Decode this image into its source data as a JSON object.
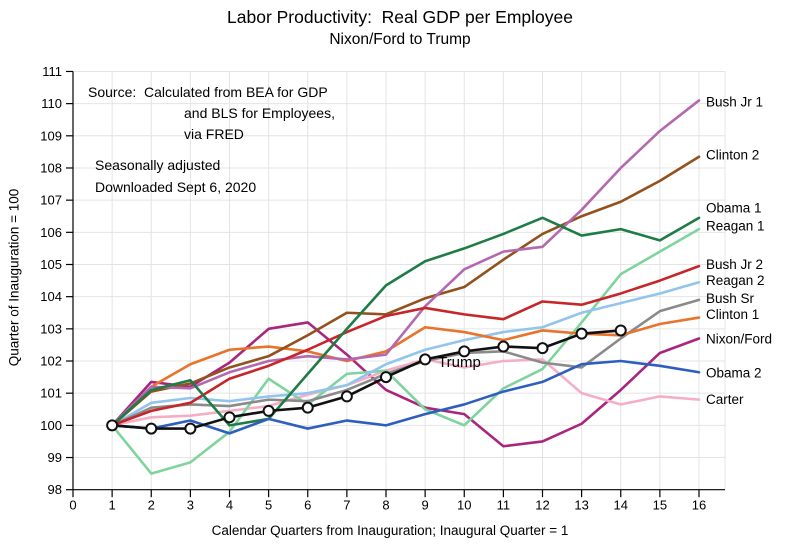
{
  "header": {
    "title": "Labor Productivity:  Real GDP per Employee",
    "subtitle": "Nixon/Ford to Trump"
  },
  "annotations": {
    "source_line1": "Source:  Calculated from BEA for GDP",
    "source_line2": "and BLS for Employees,",
    "source_line3": "via FRED",
    "note_line1": "Seasonally adjusted",
    "note_line2": "Downloaded Sept 6, 2020",
    "trump_label": "Trump"
  },
  "axes": {
    "x_title": "Calendar Quarters from Inauguration; Inaugural Quarter = 1",
    "y_title": "Quarter of Inauguration = 100"
  },
  "colors": {
    "grid": "#E4E4E4",
    "axis": "#000000",
    "marker_fill": "#FFFFFF"
  },
  "chart_data": {
    "type": "line",
    "title": "Labor Productivity:  Real GDP per Employee",
    "subtitle": "Nixon/Ford to Trump",
    "xlabel": "Calendar Quarters from Inauguration; Inaugural Quarter = 1",
    "ylabel": "Quarter of Inauguration = 100",
    "xlim": [
      0,
      16.7
    ],
    "ylim": [
      98,
      111
    ],
    "grid": true,
    "legend_position": "right-edge-of-lines",
    "x_ticks": [
      0,
      1,
      2,
      3,
      4,
      5,
      6,
      7,
      8,
      9,
      10,
      11,
      12,
      13,
      14,
      15,
      16
    ],
    "y_ticks": [
      98,
      99,
      100,
      101,
      102,
      103,
      104,
      105,
      106,
      107,
      108,
      109,
      110,
      111
    ],
    "x": [
      1,
      2,
      3,
      4,
      5,
      6,
      7,
      8,
      9,
      10,
      11,
      12,
      13,
      14,
      15,
      16
    ],
    "series": [
      {
        "key": "nixon-ford",
        "label": "Nixon/Ford",
        "color": "#A8267E",
        "label_value": 102.68,
        "values": [
          100,
          101.35,
          101.2,
          101.95,
          103.0,
          103.2,
          102.2,
          101.1,
          100.55,
          100.35,
          99.35,
          99.5,
          100.05,
          101.1,
          102.25,
          102.7
        ]
      },
      {
        "key": "carter",
        "label": "Carter",
        "color": "#F5AEC6",
        "label_value": 100.8,
        "values": [
          100,
          100.25,
          100.3,
          100.45,
          100.6,
          100.95,
          101.25,
          101.7,
          102.05,
          101.8,
          102.0,
          102.05,
          101.0,
          100.65,
          100.9,
          100.8
        ]
      },
      {
        "key": "reagan-1",
        "label": "Reagan 1",
        "color": "#7FD49E",
        "label_value": 106.2,
        "values": [
          100,
          98.5,
          98.85,
          99.8,
          101.45,
          100.65,
          101.6,
          101.7,
          100.5,
          100.0,
          101.15,
          101.75,
          103.2,
          104.7,
          105.4,
          106.1
        ]
      },
      {
        "key": "reagan-2",
        "label": "Reagan 2",
        "color": "#92C5EC",
        "label_value": 104.5,
        "values": [
          100,
          100.7,
          100.85,
          100.75,
          100.9,
          101.0,
          101.25,
          101.9,
          102.35,
          102.65,
          102.9,
          103.05,
          103.5,
          103.8,
          104.1,
          104.45
        ]
      },
      {
        "key": "bush-sr",
        "label": "Bush Sr",
        "color": "#8A8A8A",
        "label_value": 103.95,
        "values": [
          100,
          100.55,
          100.65,
          100.6,
          100.8,
          100.75,
          101.1,
          101.6,
          102.0,
          102.25,
          102.3,
          101.95,
          101.8,
          102.7,
          103.55,
          103.9
        ]
      },
      {
        "key": "clinton-1",
        "label": "Clinton 1",
        "color": "#E8732A",
        "label_value": 103.45,
        "values": [
          100,
          101.2,
          101.9,
          102.35,
          102.45,
          102.3,
          102.0,
          102.3,
          103.05,
          102.9,
          102.65,
          102.95,
          102.85,
          102.8,
          103.15,
          103.35
        ]
      },
      {
        "key": "clinton-2",
        "label": "Clinton 2",
        "color": "#93511D",
        "label_value": 108.4,
        "values": [
          100,
          101.05,
          101.3,
          101.8,
          102.15,
          102.8,
          103.5,
          103.45,
          103.95,
          104.3,
          105.15,
          105.95,
          106.5,
          106.95,
          107.6,
          108.35
        ]
      },
      {
        "key": "bush-jr-1",
        "label": "Bush Jr 1",
        "color": "#B468B0",
        "label_value": 110.05,
        "values": [
          100,
          101.2,
          101.15,
          101.65,
          102.0,
          102.15,
          102.05,
          102.2,
          103.7,
          104.85,
          105.4,
          105.55,
          106.7,
          108.0,
          109.15,
          110.1
        ]
      },
      {
        "key": "bush-jr-2",
        "label": "Bush Jr 2",
        "color": "#C6262A",
        "label_value": 105.0,
        "values": [
          100,
          100.45,
          100.7,
          101.45,
          101.85,
          102.35,
          102.9,
          103.4,
          103.65,
          103.45,
          103.3,
          103.85,
          103.75,
          104.1,
          104.5,
          104.95
        ]
      },
      {
        "key": "obama-1",
        "label": "Obama 1",
        "color": "#1F7C46",
        "label_value": 106.75,
        "values": [
          100,
          101.1,
          101.4,
          100.0,
          100.2,
          101.6,
          103.0,
          104.35,
          105.1,
          105.5,
          105.95,
          106.45,
          105.9,
          106.1,
          105.75,
          106.45
        ]
      },
      {
        "key": "obama-2",
        "label": "Obama 2",
        "color": "#2E5FBF",
        "label_value": 101.62,
        "values": [
          100,
          99.9,
          100.15,
          99.75,
          100.2,
          99.9,
          100.15,
          100.0,
          100.35,
          100.65,
          101.05,
          101.35,
          101.9,
          102.0,
          101.85,
          101.65
        ]
      },
      {
        "key": "trump",
        "label": "Trump",
        "color": "#111111",
        "label_value": null,
        "marker": "circle",
        "values": [
          100,
          99.9,
          99.9,
          100.25,
          100.45,
          100.55,
          100.9,
          101.5,
          102.05,
          102.3,
          102.45,
          102.4,
          102.85,
          102.95
        ]
      }
    ]
  }
}
